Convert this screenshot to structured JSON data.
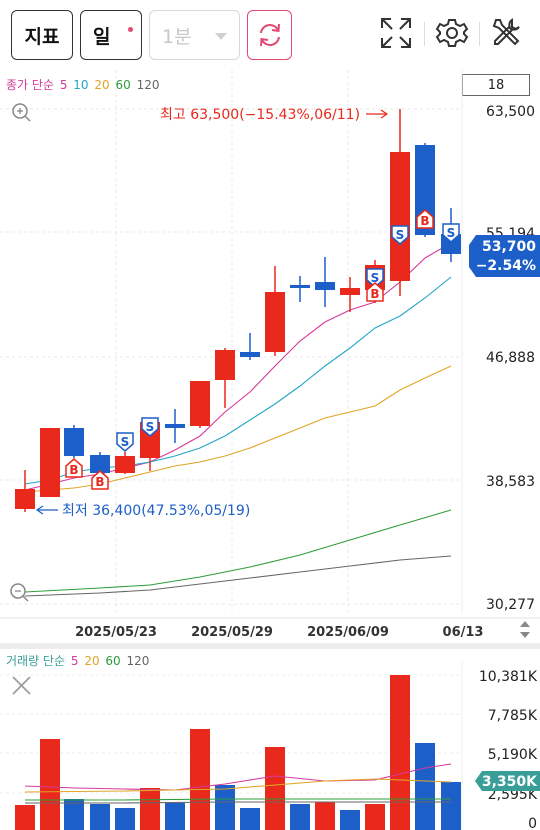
{
  "toolbar": {
    "indicator_label": "지표",
    "period_label": "일",
    "interval_label": "1분"
  },
  "price_panel": {
    "legend": {
      "title": "종가 단순",
      "periods": [
        {
          "label": "5",
          "color": "#d6399a"
        },
        {
          "label": "10",
          "color": "#21a6c7"
        },
        {
          "label": "20",
          "color": "#e0a526"
        },
        {
          "label": "60",
          "color": "#2f9c3a"
        },
        {
          "label": "120",
          "color": "#666666"
        }
      ]
    },
    "count_box": "18",
    "y_ticks": [
      "63,500",
      "55,194",
      "46,888",
      "38,583",
      "30,277"
    ],
    "x_ticks": [
      "2025/05/23",
      "2025/05/29",
      "2025/06/09",
      "06/13"
    ],
    "high_annotation": "최고 63,500(−15.43%,06/11)",
    "low_annotation": "최저 36,400(47.53%,05/19)",
    "current_price": "53,700",
    "current_change": "−2.54%",
    "buy_marker": "B",
    "sell_marker": "S"
  },
  "volume_panel": {
    "legend": {
      "title": "거래량 단순",
      "periods": [
        {
          "label": "5",
          "color": "#d6399a"
        },
        {
          "label": "20",
          "color": "#e0a526"
        },
        {
          "label": "60",
          "color": "#2f9c3a"
        },
        {
          "label": "120",
          "color": "#666666"
        }
      ]
    },
    "y_ticks": [
      "10,381K",
      "7,785K",
      "5,190K",
      "2,595K",
      "0"
    ],
    "current_volume": "3,350K"
  },
  "colors": {
    "up": "#e8291c",
    "down": "#1d5fc9",
    "accent": "#e34a6f"
  }
}
